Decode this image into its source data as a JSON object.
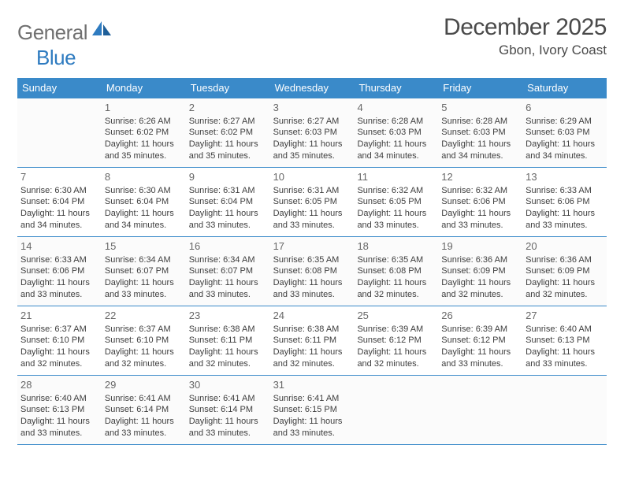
{
  "logo": {
    "text1": "General",
    "text2": "Blue"
  },
  "title": "December 2025",
  "location": "Gbon, Ivory Coast",
  "colors": {
    "header_bg": "#3a8ac9",
    "header_fg": "#ffffff",
    "rule": "#3a8ac9",
    "text": "#3e3e3e",
    "daynum": "#676767",
    "logo_gray": "#707070",
    "logo_blue": "#2e7bc0",
    "page_bg": "#ffffff"
  },
  "weekdays": [
    "Sunday",
    "Monday",
    "Tuesday",
    "Wednesday",
    "Thursday",
    "Friday",
    "Saturday"
  ],
  "start_offset": 1,
  "days": [
    {
      "n": 1,
      "sr": "6:26 AM",
      "ss": "6:02 PM",
      "d": "11 hours and 35 minutes."
    },
    {
      "n": 2,
      "sr": "6:27 AM",
      "ss": "6:02 PM",
      "d": "11 hours and 35 minutes."
    },
    {
      "n": 3,
      "sr": "6:27 AM",
      "ss": "6:03 PM",
      "d": "11 hours and 35 minutes."
    },
    {
      "n": 4,
      "sr": "6:28 AM",
      "ss": "6:03 PM",
      "d": "11 hours and 34 minutes."
    },
    {
      "n": 5,
      "sr": "6:28 AM",
      "ss": "6:03 PM",
      "d": "11 hours and 34 minutes."
    },
    {
      "n": 6,
      "sr": "6:29 AM",
      "ss": "6:03 PM",
      "d": "11 hours and 34 minutes."
    },
    {
      "n": 7,
      "sr": "6:30 AM",
      "ss": "6:04 PM",
      "d": "11 hours and 34 minutes."
    },
    {
      "n": 8,
      "sr": "6:30 AM",
      "ss": "6:04 PM",
      "d": "11 hours and 34 minutes."
    },
    {
      "n": 9,
      "sr": "6:31 AM",
      "ss": "6:04 PM",
      "d": "11 hours and 33 minutes."
    },
    {
      "n": 10,
      "sr": "6:31 AM",
      "ss": "6:05 PM",
      "d": "11 hours and 33 minutes."
    },
    {
      "n": 11,
      "sr": "6:32 AM",
      "ss": "6:05 PM",
      "d": "11 hours and 33 minutes."
    },
    {
      "n": 12,
      "sr": "6:32 AM",
      "ss": "6:06 PM",
      "d": "11 hours and 33 minutes."
    },
    {
      "n": 13,
      "sr": "6:33 AM",
      "ss": "6:06 PM",
      "d": "11 hours and 33 minutes."
    },
    {
      "n": 14,
      "sr": "6:33 AM",
      "ss": "6:06 PM",
      "d": "11 hours and 33 minutes."
    },
    {
      "n": 15,
      "sr": "6:34 AM",
      "ss": "6:07 PM",
      "d": "11 hours and 33 minutes."
    },
    {
      "n": 16,
      "sr": "6:34 AM",
      "ss": "6:07 PM",
      "d": "11 hours and 33 minutes."
    },
    {
      "n": 17,
      "sr": "6:35 AM",
      "ss": "6:08 PM",
      "d": "11 hours and 33 minutes."
    },
    {
      "n": 18,
      "sr": "6:35 AM",
      "ss": "6:08 PM",
      "d": "11 hours and 32 minutes."
    },
    {
      "n": 19,
      "sr": "6:36 AM",
      "ss": "6:09 PM",
      "d": "11 hours and 32 minutes."
    },
    {
      "n": 20,
      "sr": "6:36 AM",
      "ss": "6:09 PM",
      "d": "11 hours and 32 minutes."
    },
    {
      "n": 21,
      "sr": "6:37 AM",
      "ss": "6:10 PM",
      "d": "11 hours and 32 minutes."
    },
    {
      "n": 22,
      "sr": "6:37 AM",
      "ss": "6:10 PM",
      "d": "11 hours and 32 minutes."
    },
    {
      "n": 23,
      "sr": "6:38 AM",
      "ss": "6:11 PM",
      "d": "11 hours and 32 minutes."
    },
    {
      "n": 24,
      "sr": "6:38 AM",
      "ss": "6:11 PM",
      "d": "11 hours and 32 minutes."
    },
    {
      "n": 25,
      "sr": "6:39 AM",
      "ss": "6:12 PM",
      "d": "11 hours and 32 minutes."
    },
    {
      "n": 26,
      "sr": "6:39 AM",
      "ss": "6:12 PM",
      "d": "11 hours and 33 minutes."
    },
    {
      "n": 27,
      "sr": "6:40 AM",
      "ss": "6:13 PM",
      "d": "11 hours and 33 minutes."
    },
    {
      "n": 28,
      "sr": "6:40 AM",
      "ss": "6:13 PM",
      "d": "11 hours and 33 minutes."
    },
    {
      "n": 29,
      "sr": "6:41 AM",
      "ss": "6:14 PM",
      "d": "11 hours and 33 minutes."
    },
    {
      "n": 30,
      "sr": "6:41 AM",
      "ss": "6:14 PM",
      "d": "11 hours and 33 minutes."
    },
    {
      "n": 31,
      "sr": "6:41 AM",
      "ss": "6:15 PM",
      "d": "11 hours and 33 minutes."
    }
  ],
  "labels": {
    "sunrise": "Sunrise:",
    "sunset": "Sunset:",
    "daylight": "Daylight:"
  }
}
